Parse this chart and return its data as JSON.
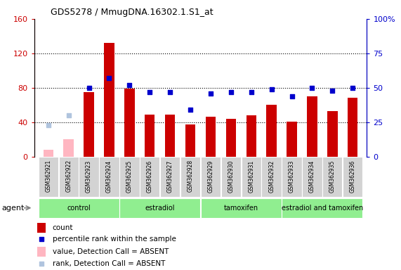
{
  "title": "GDS5278 / MmugDNA.16302.1.S1_at",
  "samples": [
    "GSM362921",
    "GSM362922",
    "GSM362923",
    "GSM362924",
    "GSM362925",
    "GSM362926",
    "GSM362927",
    "GSM362928",
    "GSM362929",
    "GSM362930",
    "GSM362931",
    "GSM362932",
    "GSM362933",
    "GSM362934",
    "GSM362935",
    "GSM362936"
  ],
  "count_values": [
    null,
    null,
    75,
    132,
    79,
    49,
    49,
    37,
    46,
    44,
    48,
    60,
    41,
    70,
    53,
    68
  ],
  "count_absent": [
    8,
    20,
    null,
    null,
    null,
    null,
    null,
    null,
    null,
    null,
    null,
    null,
    null,
    null,
    null,
    null
  ],
  "rank_values": [
    null,
    null,
    50,
    57,
    52,
    47,
    47,
    34,
    46,
    47,
    47,
    49,
    44,
    50,
    48,
    50
  ],
  "rank_absent": [
    23,
    30,
    null,
    null,
    null,
    null,
    null,
    null,
    null,
    null,
    null,
    null,
    null,
    null,
    null,
    null
  ],
  "groups": [
    {
      "label": "control",
      "start": 0,
      "end": 4,
      "color": "#90ee90"
    },
    {
      "label": "estradiol",
      "start": 4,
      "end": 8,
      "color": "#90ee90"
    },
    {
      "label": "tamoxifen",
      "start": 8,
      "end": 12,
      "color": "#90ee90"
    },
    {
      "label": "estradiol and tamoxifen",
      "start": 12,
      "end": 16,
      "color": "#90ee90"
    }
  ],
  "group_row_label": "agent",
  "ylim_left": [
    0,
    160
  ],
  "ylim_right": [
    0,
    100
  ],
  "yticks_left": [
    0,
    40,
    80,
    120,
    160
  ],
  "yticks_right": [
    0,
    25,
    50,
    75,
    100
  ],
  "ytick_labels_left": [
    "0",
    "40",
    "80",
    "120",
    "160"
  ],
  "ytick_labels_right": [
    "0",
    "25",
    "50",
    "75",
    "100%"
  ],
  "bar_color": "#cc0000",
  "bar_absent_color": "#ffb6c1",
  "dot_color": "#0000cc",
  "dot_absent_color": "#b0c4de",
  "bar_width": 0.5,
  "dot_size": 25,
  "legend_items": [
    {
      "label": "count",
      "color": "#cc0000",
      "type": "bar"
    },
    {
      "label": "percentile rank within the sample",
      "color": "#0000cc",
      "type": "dot"
    },
    {
      "label": "value, Detection Call = ABSENT",
      "color": "#ffb6c1",
      "type": "bar"
    },
    {
      "label": "rank, Detection Call = ABSENT",
      "color": "#b0c4de",
      "type": "dot"
    }
  ]
}
